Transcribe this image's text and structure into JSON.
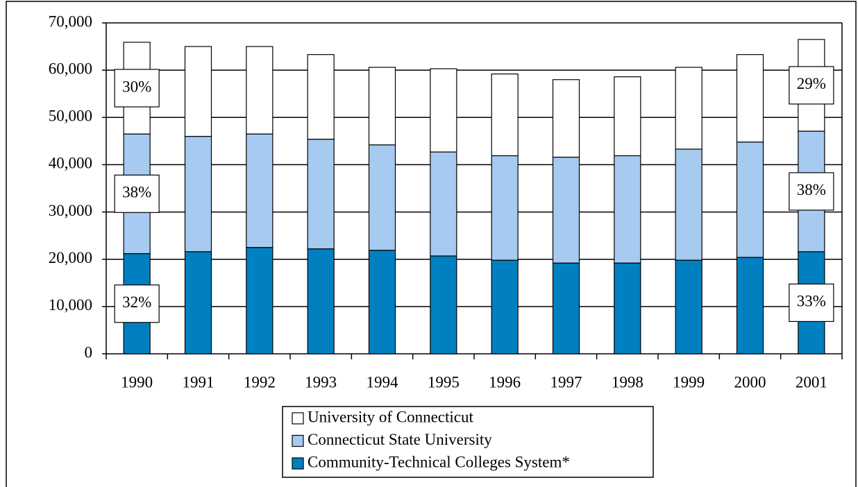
{
  "chart_data": {
    "type": "stacked_bar",
    "categories": [
      "1990",
      "1991",
      "1992",
      "1993",
      "1994",
      "1995",
      "1996",
      "1997",
      "1998",
      "1999",
      "2000",
      "2001"
    ],
    "series": [
      {
        "name": "Community-Technical Colleges System*",
        "color": "#0080c0",
        "values": [
          21200,
          21600,
          22500,
          22200,
          21900,
          20700,
          19800,
          19200,
          19200,
          19800,
          20400,
          21600
        ]
      },
      {
        "name": "Connecticut State University",
        "color": "#a6caf0",
        "values": [
          25300,
          24400,
          24000,
          23200,
          22300,
          22000,
          22100,
          22400,
          22700,
          23500,
          24400,
          25500
        ]
      },
      {
        "name": "University of Connecticut",
        "color": "#ffffff",
        "values": [
          19400,
          19000,
          18500,
          17900,
          16400,
          17600,
          17300,
          16400,
          16700,
          17300,
          18500,
          19400
        ]
      }
    ],
    "ylim": [
      0,
      70000
    ],
    "yticks": [
      0,
      {
        "value": 10000,
        "label": "10,000"
      },
      {
        "value": 20000,
        "label": "20,000"
      },
      {
        "value": 30000,
        "label": "30,000"
      },
      {
        "value": 40000,
        "label": "40,000"
      },
      {
        "value": 50000,
        "label": "50,000"
      },
      {
        "value": 60000,
        "label": "60,000"
      },
      {
        "value": 70000,
        "label": "70,000"
      }
    ],
    "grid": true,
    "annotations": [
      {
        "text": "32%",
        "category": 0,
        "series": 0
      },
      {
        "text": "38%",
        "category": 0,
        "series": 1
      },
      {
        "text": "30%",
        "category": 0,
        "series": 2
      },
      {
        "text": "33%",
        "category": 11,
        "series": 0
      },
      {
        "text": "38%",
        "category": 11,
        "series": 1
      },
      {
        "text": "29%",
        "category": 11,
        "series": 2
      }
    ]
  }
}
